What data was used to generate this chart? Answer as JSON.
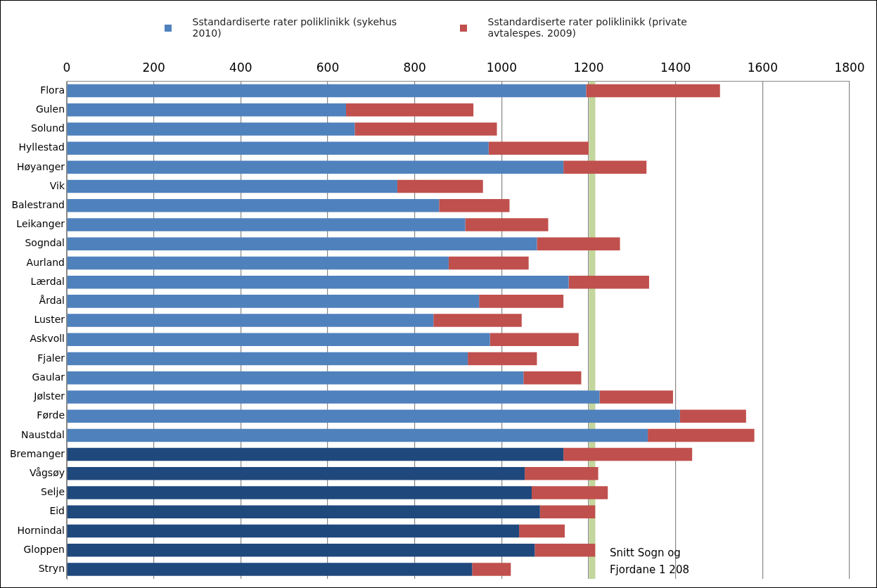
{
  "chart_data": {
    "type": "bar",
    "orientation": "horizontal",
    "stacked": true,
    "categories": [
      "Flora",
      "Gulen",
      "Solund",
      "Hyllestad",
      "Høyanger",
      "Vik",
      "Balestrand",
      "Leikanger",
      "Sogndal",
      "Aurland",
      "Lærdal",
      "Årdal",
      "Luster",
      "Askvoll",
      "Fjaler",
      "Gaular",
      "Jølster",
      "Førde",
      "Naustdal",
      "Bremanger",
      "Vågsøy",
      "Selje",
      "Eid",
      "Hornindal",
      "Gloppen",
      "Stryn"
    ],
    "series": [
      {
        "name": "Sstandardiserte rater poliklinikk (sykehus 2010)",
        "color": "#4f81bd",
        "colors": [
          "#4f81bd",
          "#4f81bd",
          "#4f81bd",
          "#4f81bd",
          "#4f81bd",
          "#4f81bd",
          "#4f81bd",
          "#4f81bd",
          "#4f81bd",
          "#4f81bd",
          "#4f81bd",
          "#4f81bd",
          "#4f81bd",
          "#4f81bd",
          "#4f81bd",
          "#4f81bd",
          "#4f81bd",
          "#4f81bd",
          "#4f81bd",
          "#1f497d",
          "#1f497d",
          "#1f497d",
          "#1f497d",
          "#1f497d",
          "#1f497d",
          "#1f497d"
        ],
        "values": [
          1194,
          642,
          662,
          970,
          1142,
          760,
          856,
          916,
          1081,
          878,
          1154,
          948,
          843,
          973,
          922,
          1050,
          1225,
          1410,
          1336,
          1142,
          1053,
          1069,
          1088,
          1040,
          1076,
          932
        ]
      },
      {
        "name": "Sstandardiserte rater poliklinikk (private avtalespes. 2009)",
        "color": "#c0504d",
        "values": [
          308,
          293,
          327,
          230,
          191,
          197,
          162,
          191,
          191,
          184,
          185,
          194,
          203,
          204,
          159,
          133,
          169,
          152,
          245,
          296,
          169,
          175,
          127,
          105,
          139,
          89
        ]
      }
    ],
    "xlim": [
      0,
      1800
    ],
    "xticks": [
      0,
      200,
      400,
      600,
      800,
      1000,
      1200,
      1400,
      1600,
      1800
    ],
    "grid": "x",
    "legend": "top",
    "ref_lines": [
      {
        "axis": "x",
        "value": 1208,
        "label": "Snitt Sogn og Fjordane 1 208",
        "color": "#c3d69b"
      }
    ]
  }
}
